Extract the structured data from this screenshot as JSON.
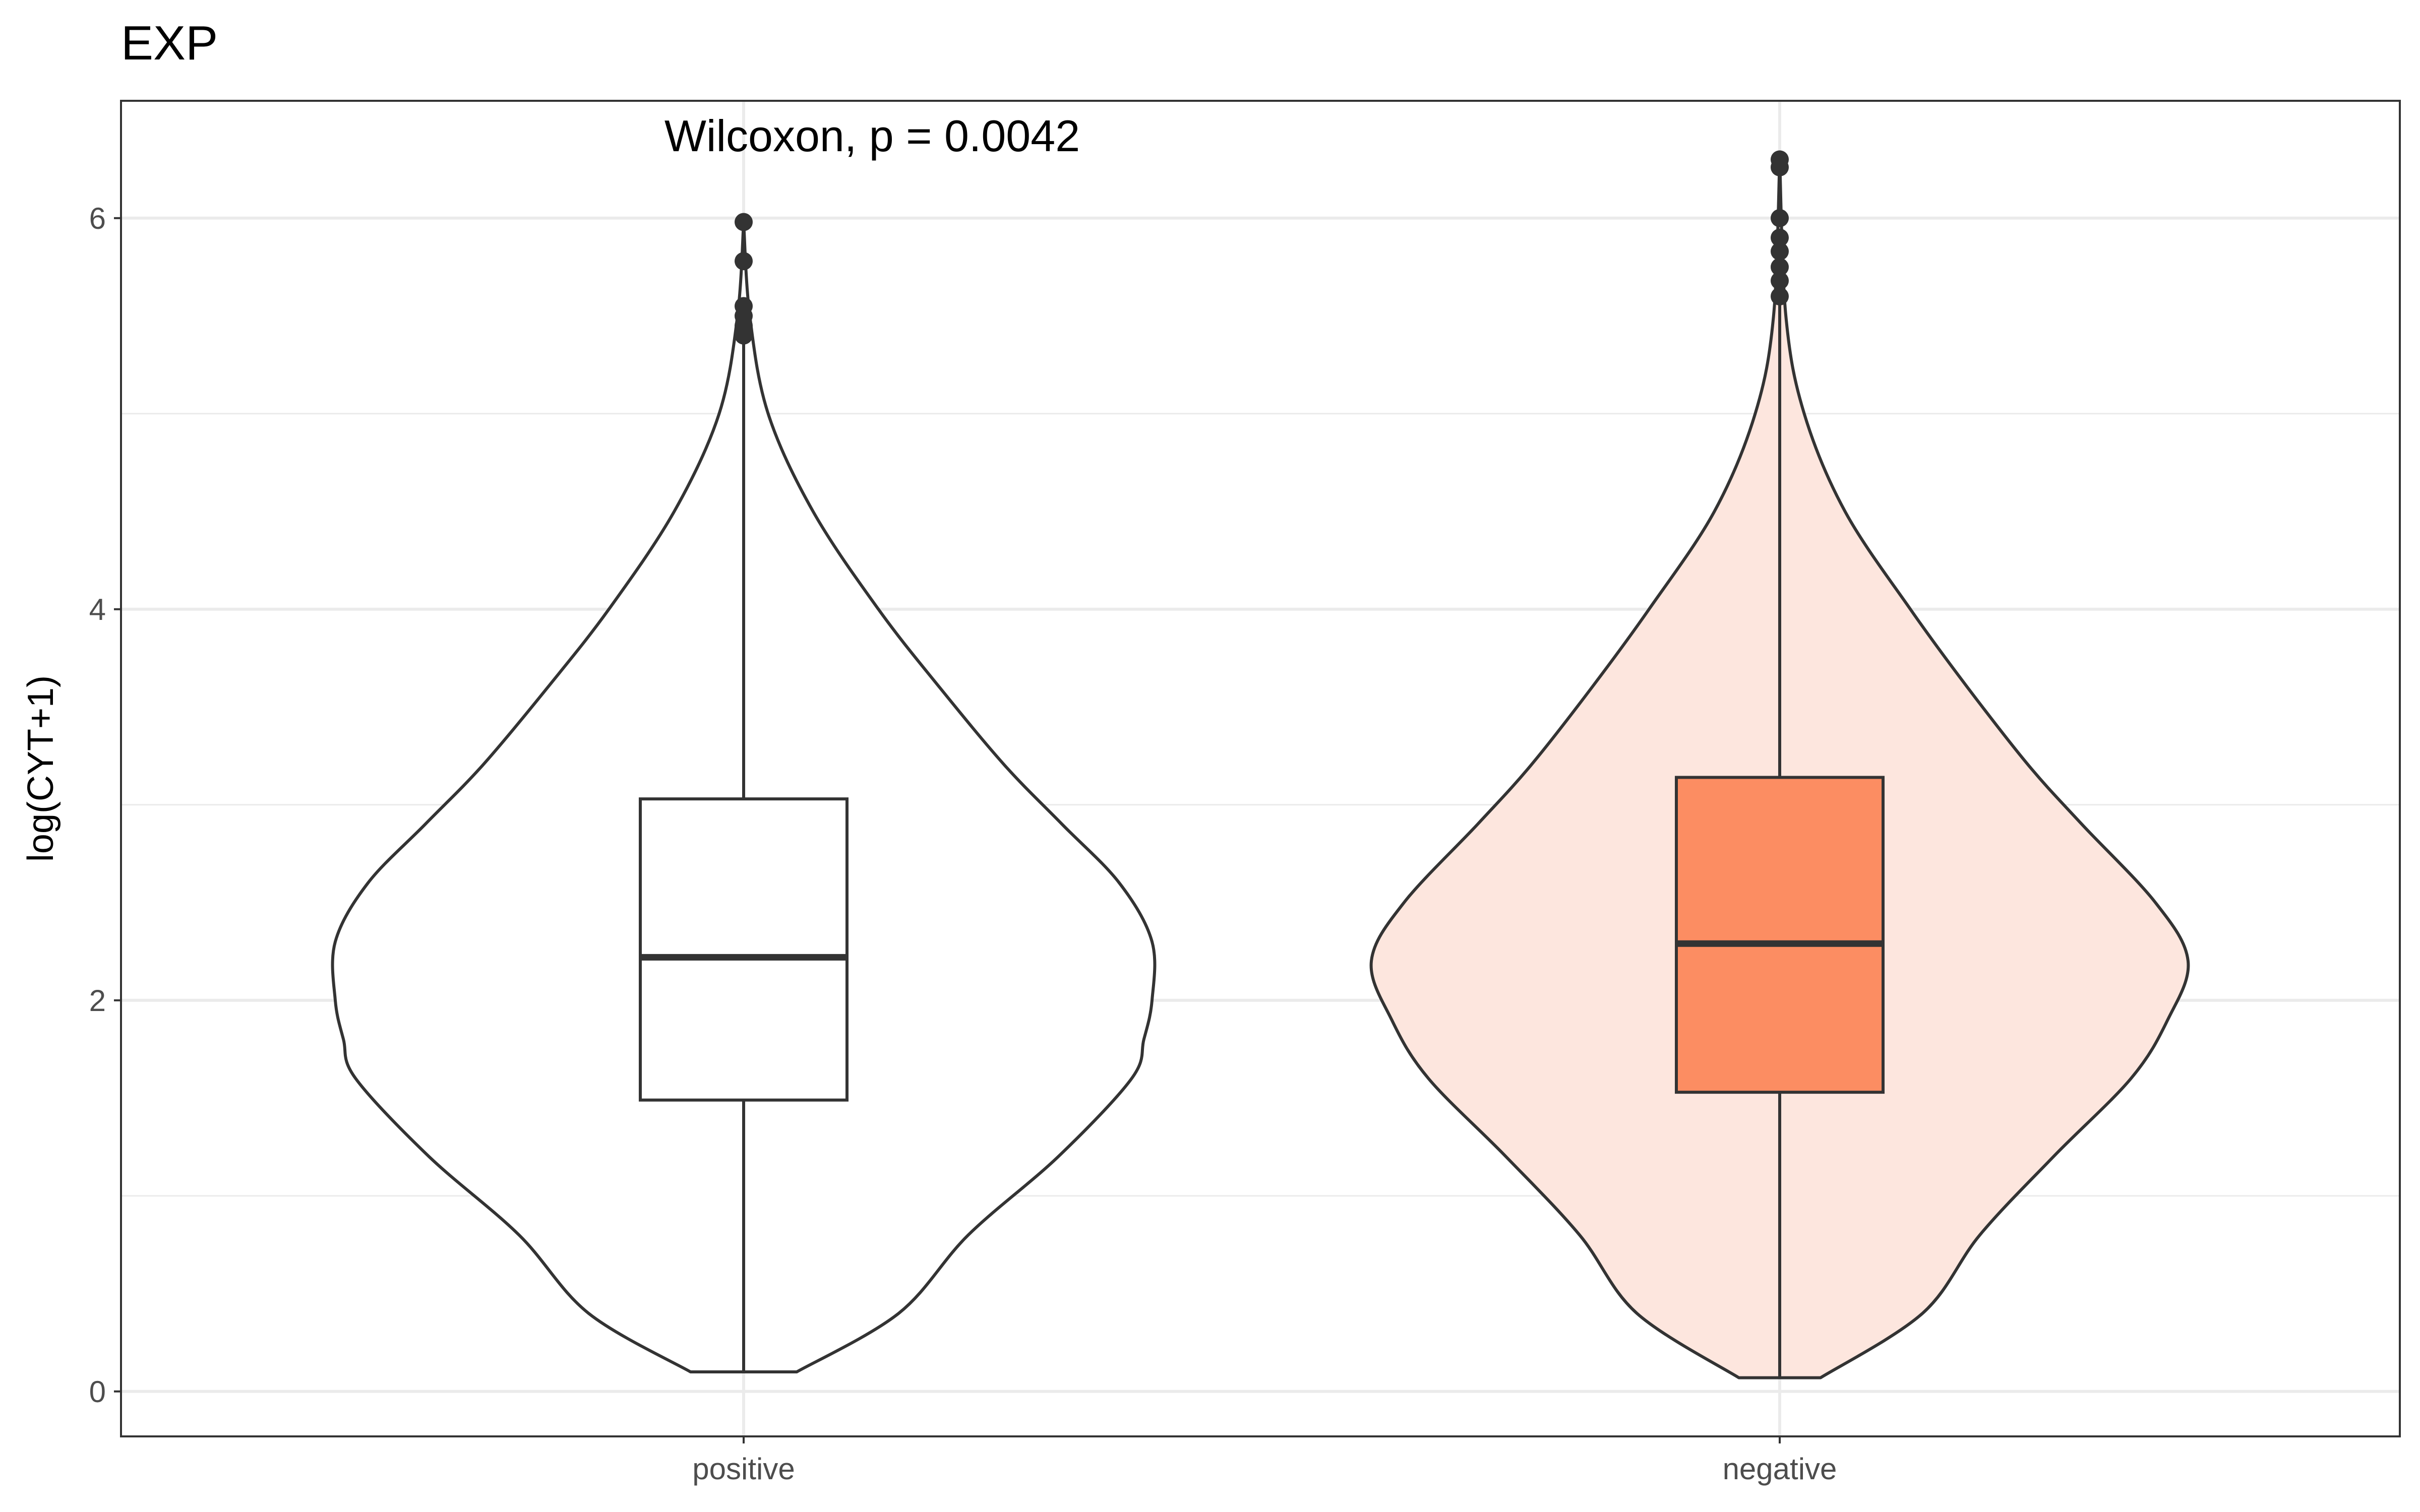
{
  "chart_data": {
    "type": "violin",
    "title": "EXP",
    "xlabel": "",
    "ylabel": "log(CYT+1)",
    "ylim": [
      -0.23,
      6.6
    ],
    "yticks": [
      0,
      2,
      4,
      6
    ],
    "grid": true,
    "legend": "none",
    "annotation": "Wilcoxon, p = 0.0042",
    "categories": [
      "positive",
      "negative"
    ],
    "groups": [
      {
        "category": "positive",
        "violin_fill": "#ffffff",
        "box_fill": "#ffffff",
        "box": {
          "min": 0.1,
          "q1": 1.49,
          "median": 2.22,
          "q3": 3.03,
          "max": 5.4
        },
        "outliers": [
          5.4,
          5.45,
          5.5,
          5.55,
          5.78,
          5.98
        ],
        "density": [
          [
            0.1,
            0.13
          ],
          [
            0.4,
            0.38
          ],
          [
            0.8,
            0.55
          ],
          [
            1.2,
            0.77
          ],
          [
            1.6,
            0.95
          ],
          [
            1.8,
            0.98
          ],
          [
            2.0,
            1.0
          ],
          [
            2.3,
            1.0
          ],
          [
            2.6,
            0.92
          ],
          [
            2.9,
            0.78
          ],
          [
            3.2,
            0.64
          ],
          [
            3.6,
            0.48
          ],
          [
            4.0,
            0.33
          ],
          [
            4.5,
            0.17
          ],
          [
            5.0,
            0.06
          ],
          [
            5.5,
            0.015
          ],
          [
            5.98,
            0.0
          ]
        ]
      },
      {
        "category": "negative",
        "violin_fill": "#fde6de",
        "box_fill": "#fc8d62",
        "box": {
          "min": 0.07,
          "q1": 1.53,
          "median": 2.29,
          "q3": 3.14,
          "max": 5.6
        },
        "outliers": [
          5.6,
          5.68,
          5.75,
          5.83,
          5.9,
          6.0,
          6.26,
          6.3
        ],
        "density": [
          [
            0.07,
            0.1
          ],
          [
            0.4,
            0.35
          ],
          [
            0.8,
            0.49
          ],
          [
            1.2,
            0.67
          ],
          [
            1.6,
            0.86
          ],
          [
            1.9,
            0.95
          ],
          [
            2.2,
            1.0
          ],
          [
            2.5,
            0.92
          ],
          [
            2.9,
            0.74
          ],
          [
            3.2,
            0.61
          ],
          [
            3.6,
            0.46
          ],
          [
            4.0,
            0.32
          ],
          [
            4.5,
            0.16
          ],
          [
            5.0,
            0.06
          ],
          [
            5.5,
            0.015
          ],
          [
            6.3,
            0.0
          ]
        ]
      }
    ]
  }
}
